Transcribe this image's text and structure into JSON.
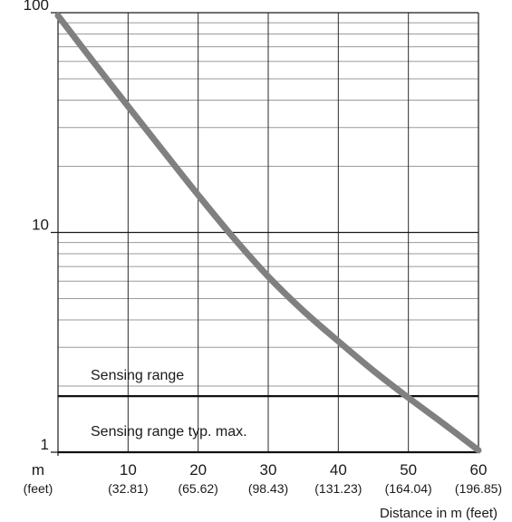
{
  "chart_data": {
    "type": "line",
    "title": "",
    "xlabel": "Distance in m (feet)",
    "ylabel": "",
    "y_scale": "log",
    "xlim": [
      0,
      60
    ],
    "ylim": [
      1,
      100
    ],
    "grid": true,
    "y_ticks": [
      {
        "value": 1,
        "label": "1"
      },
      {
        "value": 10,
        "label": "10"
      },
      {
        "value": 100,
        "label": "100"
      }
    ],
    "x_ticks": [
      {
        "value": 0,
        "label": "m",
        "sublabel": "(feet)"
      },
      {
        "value": 10,
        "label": "10",
        "sublabel": "(32.81)"
      },
      {
        "value": 20,
        "label": "20",
        "sublabel": "(65.62)"
      },
      {
        "value": 30,
        "label": "30",
        "sublabel": "(98.43)"
      },
      {
        "value": 40,
        "label": "40",
        "sublabel": "(131.23)"
      },
      {
        "value": 50,
        "label": "50",
        "sublabel": "(164.04)"
      },
      {
        "value": 60,
        "label": "60",
        "sublabel": "(196.85)"
      }
    ],
    "series": [
      {
        "color": "#808080",
        "x": [
          0,
          5,
          10,
          15,
          20,
          25,
          30,
          35,
          40,
          45,
          50,
          55,
          60
        ],
        "y": [
          97,
          60,
          37.5,
          23.5,
          14.8,
          9.5,
          6.3,
          4.4,
          3.2,
          2.35,
          1.77,
          1.35,
          1.02
        ]
      }
    ],
    "reference_lines": [
      {
        "y": 1.8,
        "label": "Sensing range",
        "label_position": "above"
      },
      {
        "y": 1.0,
        "label": "Sensing range typ. max.",
        "label_position": "above"
      }
    ]
  }
}
